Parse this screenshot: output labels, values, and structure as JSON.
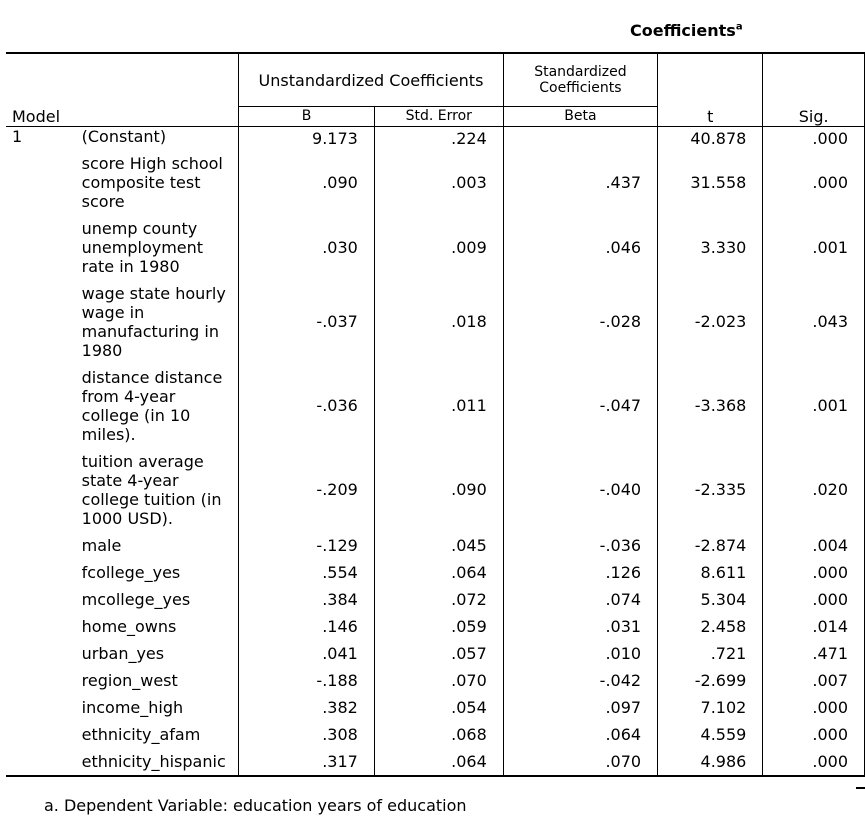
{
  "title": "Coefficients",
  "title_sup": "a",
  "headers": {
    "model": "Model",
    "unstandardized": "Unstandardized Coefficients",
    "standardized": "Standardized Coefficients",
    "b": "B",
    "std_error": "Std. Error",
    "beta": "Beta",
    "t": "t",
    "sig": "Sig."
  },
  "model_number": "1",
  "rows": [
    {
      "name": "(Constant)",
      "b": "9.173",
      "se": ".224",
      "beta": "",
      "t": "40.878",
      "sig": ".000"
    },
    {
      "name": "score High school composite test score",
      "b": ".090",
      "se": ".003",
      "beta": ".437",
      "t": "31.558",
      "sig": ".000"
    },
    {
      "name": "unemp county unemployment rate in 1980",
      "b": ".030",
      "se": ".009",
      "beta": ".046",
      "t": "3.330",
      "sig": ".001"
    },
    {
      "name": "wage state hourly wage in manufacturing in 1980",
      "b": "-.037",
      "se": ".018",
      "beta": "-.028",
      "t": "-2.023",
      "sig": ".043"
    },
    {
      "name": "distance distance from 4-year college (in 10 miles).",
      "b": "-.036",
      "se": ".011",
      "beta": "-.047",
      "t": "-3.368",
      "sig": ".001"
    },
    {
      "name": "tuition average state 4-year college tuition (in 1000 USD).",
      "b": "-.209",
      "se": ".090",
      "beta": "-.040",
      "t": "-2.335",
      "sig": ".020"
    },
    {
      "name": "male",
      "b": "-.129",
      "se": ".045",
      "beta": "-.036",
      "t": "-2.874",
      "sig": ".004"
    },
    {
      "name": "fcollege_yes",
      "b": ".554",
      "se": ".064",
      "beta": ".126",
      "t": "8.611",
      "sig": ".000"
    },
    {
      "name": "mcollege_yes",
      "b": ".384",
      "se": ".072",
      "beta": ".074",
      "t": "5.304",
      "sig": ".000"
    },
    {
      "name": "home_owns",
      "b": ".146",
      "se": ".059",
      "beta": ".031",
      "t": "2.458",
      "sig": ".014"
    },
    {
      "name": "urban_yes",
      "b": ".041",
      "se": ".057",
      "beta": ".010",
      "t": ".721",
      "sig": ".471"
    },
    {
      "name": "region_west",
      "b": "-.188",
      "se": ".070",
      "beta": "-.042",
      "t": "-2.699",
      "sig": ".007"
    },
    {
      "name": "income_high",
      "b": ".382",
      "se": ".054",
      "beta": ".097",
      "t": "7.102",
      "sig": ".000"
    },
    {
      "name": "ethnicity_afam",
      "b": ".308",
      "se": ".068",
      "beta": ".064",
      "t": "4.559",
      "sig": ".000"
    },
    {
      "name": "ethnicity_hispanic",
      "b": ".317",
      "se": ".064",
      "beta": ".070",
      "t": "4.986",
      "sig": ".000"
    }
  ],
  "footnote": "a. Dependent Variable: education years of education"
}
